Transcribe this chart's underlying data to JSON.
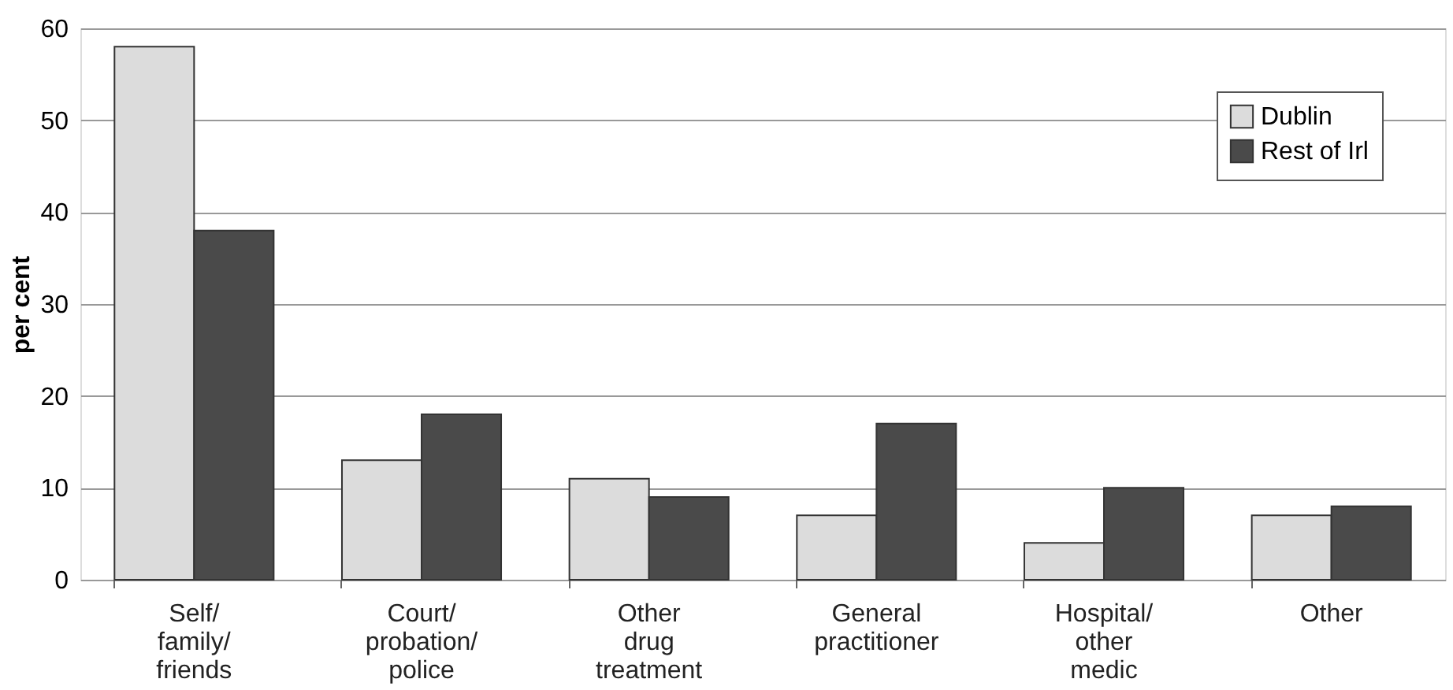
{
  "chart_data": {
    "type": "bar",
    "ylabel": "per cent",
    "categories": [
      "Self/\nfamily/\nfriends",
      "Court/\nprobation/\npolice",
      "Other\ndrug\ntreatment",
      "General\npractitioner",
      "Hospital/\nother\nmedic",
      "Other"
    ],
    "series": [
      {
        "name": "Dublin",
        "color": "#dcdcdc",
        "values": [
          58,
          13,
          11,
          7,
          4,
          7
        ]
      },
      {
        "name": "Rest of Irl",
        "color": "#4a4a4a",
        "values": [
          38,
          18,
          9,
          17,
          10,
          8
        ]
      }
    ],
    "ylim": [
      0,
      60
    ],
    "yticks": [
      0,
      10,
      20,
      30,
      40,
      50,
      60
    ],
    "grid": "y",
    "legend": "top right"
  }
}
